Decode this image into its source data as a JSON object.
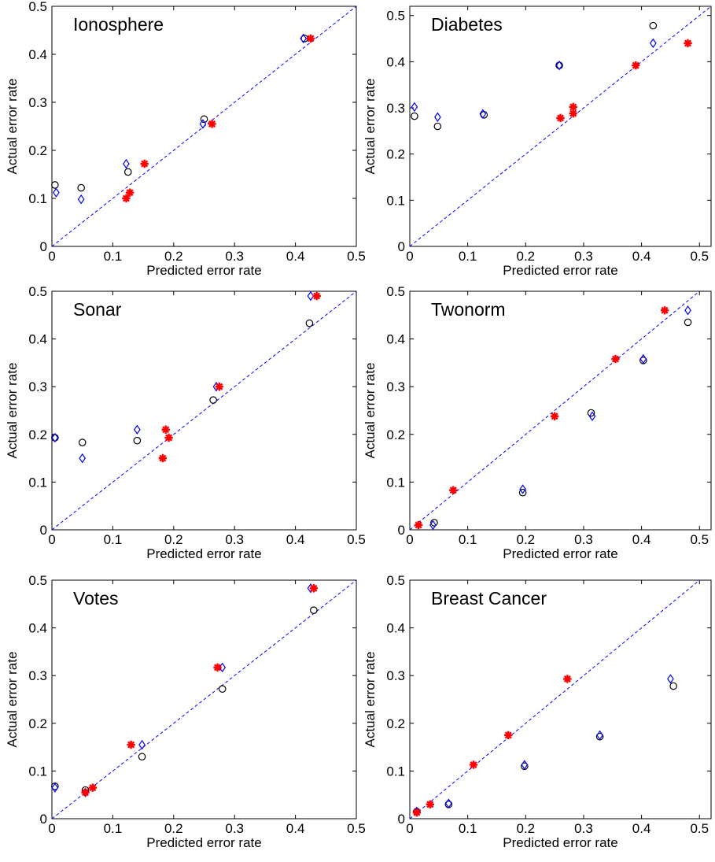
{
  "chart_data": [
    {
      "type": "scatter",
      "title": "Ionosphere",
      "xlabel": "Predicted error rate",
      "ylabel": "Actual error rate",
      "xlim": [
        0,
        0.5
      ],
      "ylim": [
        0,
        0.5
      ],
      "xticks": [
        "0",
        "0.1",
        "0.2",
        "0.3",
        "0.4",
        "0.5"
      ],
      "yticks": [
        "0",
        "0.1",
        "0.2",
        "0.3",
        "0.4",
        "0.5"
      ],
      "diagonal": true,
      "series": [
        {
          "marker": "circle",
          "color": "#000000",
          "points": [
            [
              0.005,
              0.128
            ],
            [
              0.048,
              0.122
            ],
            [
              0.125,
              0.155
            ],
            [
              0.25,
              0.265
            ],
            [
              0.415,
              0.433
            ]
          ]
        },
        {
          "marker": "diamond",
          "color": "#0000ff",
          "points": [
            [
              0.007,
              0.112
            ],
            [
              0.048,
              0.098
            ],
            [
              0.122,
              0.172
            ],
            [
              0.248,
              0.255
            ],
            [
              0.413,
              0.433
            ]
          ]
        },
        {
          "marker": "star",
          "color": "#ff0000",
          "points": [
            [
              0.122,
              0.1
            ],
            [
              0.128,
              0.112
            ],
            [
              0.152,
              0.172
            ],
            [
              0.263,
              0.255
            ],
            [
              0.425,
              0.433
            ]
          ]
        }
      ]
    },
    {
      "type": "scatter",
      "title": "Diabetes",
      "xlabel": "Predicted error rate",
      "ylabel": "Actual error rate",
      "xlim": [
        0,
        0.52
      ],
      "ylim": [
        0,
        0.52
      ],
      "xticks": [
        "0",
        "0.1",
        "0.2",
        "0.3",
        "0.4",
        "0.5"
      ],
      "yticks": [
        "0",
        "0.1",
        "0.2",
        "0.3",
        "0.4",
        "0.5"
      ],
      "diagonal": true,
      "series": [
        {
          "marker": "circle",
          "color": "#000000",
          "points": [
            [
              0.008,
              0.282
            ],
            [
              0.048,
              0.26
            ],
            [
              0.128,
              0.285
            ],
            [
              0.258,
              0.392
            ],
            [
              0.42,
              0.478
            ]
          ]
        },
        {
          "marker": "diamond",
          "color": "#0000ff",
          "points": [
            [
              0.008,
              0.302
            ],
            [
              0.048,
              0.28
            ],
            [
              0.126,
              0.287
            ],
            [
              0.258,
              0.392
            ],
            [
              0.42,
              0.44
            ]
          ]
        },
        {
          "marker": "star",
          "color": "#ff0000",
          "points": [
            [
              0.26,
              0.278
            ],
            [
              0.282,
              0.302
            ],
            [
              0.282,
              0.288
            ],
            [
              0.39,
              0.392
            ],
            [
              0.48,
              0.44
            ]
          ]
        }
      ]
    },
    {
      "type": "scatter",
      "title": "Sonar",
      "xlabel": "Predicted error rate",
      "ylabel": "Actual error rate",
      "xlim": [
        0,
        0.5
      ],
      "ylim": [
        0,
        0.5
      ],
      "xticks": [
        "0",
        "0.1",
        "0.2",
        "0.3",
        "0.4",
        "0.5"
      ],
      "yticks": [
        "0",
        "0.1",
        "0.2",
        "0.3",
        "0.4",
        "0.5"
      ],
      "diagonal": true,
      "series": [
        {
          "marker": "circle",
          "color": "#000000",
          "points": [
            [
              0.005,
              0.193
            ],
            [
              0.05,
              0.183
            ],
            [
              0.14,
              0.187
            ],
            [
              0.265,
              0.272
            ],
            [
              0.423,
              0.433
            ]
          ]
        },
        {
          "marker": "diamond",
          "color": "#0000ff",
          "points": [
            [
              0.005,
              0.193
            ],
            [
              0.05,
              0.15
            ],
            [
              0.14,
              0.21
            ],
            [
              0.27,
              0.3
            ],
            [
              0.425,
              0.49
            ]
          ]
        },
        {
          "marker": "star",
          "color": "#ff0000",
          "points": [
            [
              0.182,
              0.15
            ],
            [
              0.187,
              0.21
            ],
            [
              0.192,
              0.193
            ],
            [
              0.275,
              0.3
            ],
            [
              0.435,
              0.49
            ]
          ]
        }
      ]
    },
    {
      "type": "scatter",
      "title": "Twonorm",
      "xlabel": "Predicted error rate",
      "ylabel": "Actual error rate",
      "xlim": [
        0,
        0.52
      ],
      "ylim": [
        0,
        0.5
      ],
      "xticks": [
        "0",
        "0.1",
        "0.2",
        "0.3",
        "0.4",
        "0.5"
      ],
      "yticks": [
        "0",
        "0.1",
        "0.2",
        "0.3",
        "0.4",
        "0.5"
      ],
      "diagonal": true,
      "series": [
        {
          "marker": "circle",
          "color": "#000000",
          "points": [
            [
              0.042,
              0.015
            ],
            [
              0.195,
              0.078
            ],
            [
              0.313,
              0.245
            ],
            [
              0.403,
              0.355
            ],
            [
              0.48,
              0.435
            ]
          ]
        },
        {
          "marker": "diamond",
          "color": "#0000ff",
          "points": [
            [
              0.04,
              0.01
            ],
            [
              0.195,
              0.085
            ],
            [
              0.315,
              0.238
            ],
            [
              0.403,
              0.358
            ],
            [
              0.48,
              0.46
            ]
          ]
        },
        {
          "marker": "star",
          "color": "#ff0000",
          "points": [
            [
              0.015,
              0.01
            ],
            [
              0.075,
              0.083
            ],
            [
              0.25,
              0.238
            ],
            [
              0.355,
              0.358
            ],
            [
              0.44,
              0.46
            ]
          ]
        }
      ]
    },
    {
      "type": "scatter",
      "title": "Votes",
      "xlabel": "Predicted error rate",
      "ylabel": "Actual error rate",
      "xlim": [
        0,
        0.5
      ],
      "ylim": [
        0,
        0.5
      ],
      "xticks": [
        "0",
        "0.1",
        "0.2",
        "0.3",
        "0.4",
        "0.5"
      ],
      "yticks": [
        "0",
        "0.1",
        "0.2",
        "0.3",
        "0.4",
        "0.5"
      ],
      "diagonal": true,
      "series": [
        {
          "marker": "circle",
          "color": "#000000",
          "points": [
            [
              0.005,
              0.068
            ],
            [
              0.055,
              0.06
            ],
            [
              0.148,
              0.13
            ],
            [
              0.28,
              0.272
            ],
            [
              0.43,
              0.437
            ]
          ]
        },
        {
          "marker": "diamond",
          "color": "#0000ff",
          "points": [
            [
              0.005,
              0.065
            ],
            [
              0.055,
              0.055
            ],
            [
              0.148,
              0.155
            ],
            [
              0.28,
              0.317
            ],
            [
              0.425,
              0.483
            ]
          ]
        },
        {
          "marker": "star",
          "color": "#ff0000",
          "points": [
            [
              0.055,
              0.055
            ],
            [
              0.067,
              0.065
            ],
            [
              0.13,
              0.155
            ],
            [
              0.272,
              0.317
            ],
            [
              0.43,
              0.483
            ]
          ]
        }
      ]
    },
    {
      "type": "scatter",
      "title": "Breast Cancer",
      "xlabel": "Predicted error rate",
      "ylabel": "Actual error rate",
      "xlim": [
        0,
        0.52
      ],
      "ylim": [
        0,
        0.5
      ],
      "xticks": [
        "0",
        "0.1",
        "0.2",
        "0.3",
        "0.4",
        "0.5"
      ],
      "yticks": [
        "0",
        "0.1",
        "0.2",
        "0.3",
        "0.4",
        "0.5"
      ],
      "diagonal": true,
      "series": [
        {
          "marker": "circle",
          "color": "#000000",
          "points": [
            [
              0.012,
              0.015
            ],
            [
              0.067,
              0.03
            ],
            [
              0.198,
              0.11
            ],
            [
              0.328,
              0.172
            ],
            [
              0.455,
              0.278
            ]
          ]
        },
        {
          "marker": "diamond",
          "color": "#0000ff",
          "points": [
            [
              0.012,
              0.015
            ],
            [
              0.067,
              0.032
            ],
            [
              0.198,
              0.113
            ],
            [
              0.328,
              0.175
            ],
            [
              0.45,
              0.293
            ]
          ]
        },
        {
          "marker": "star",
          "color": "#ff0000",
          "points": [
            [
              0.012,
              0.013
            ],
            [
              0.035,
              0.03
            ],
            [
              0.11,
              0.113
            ],
            [
              0.17,
              0.175
            ],
            [
              0.272,
              0.293
            ]
          ]
        }
      ]
    }
  ]
}
